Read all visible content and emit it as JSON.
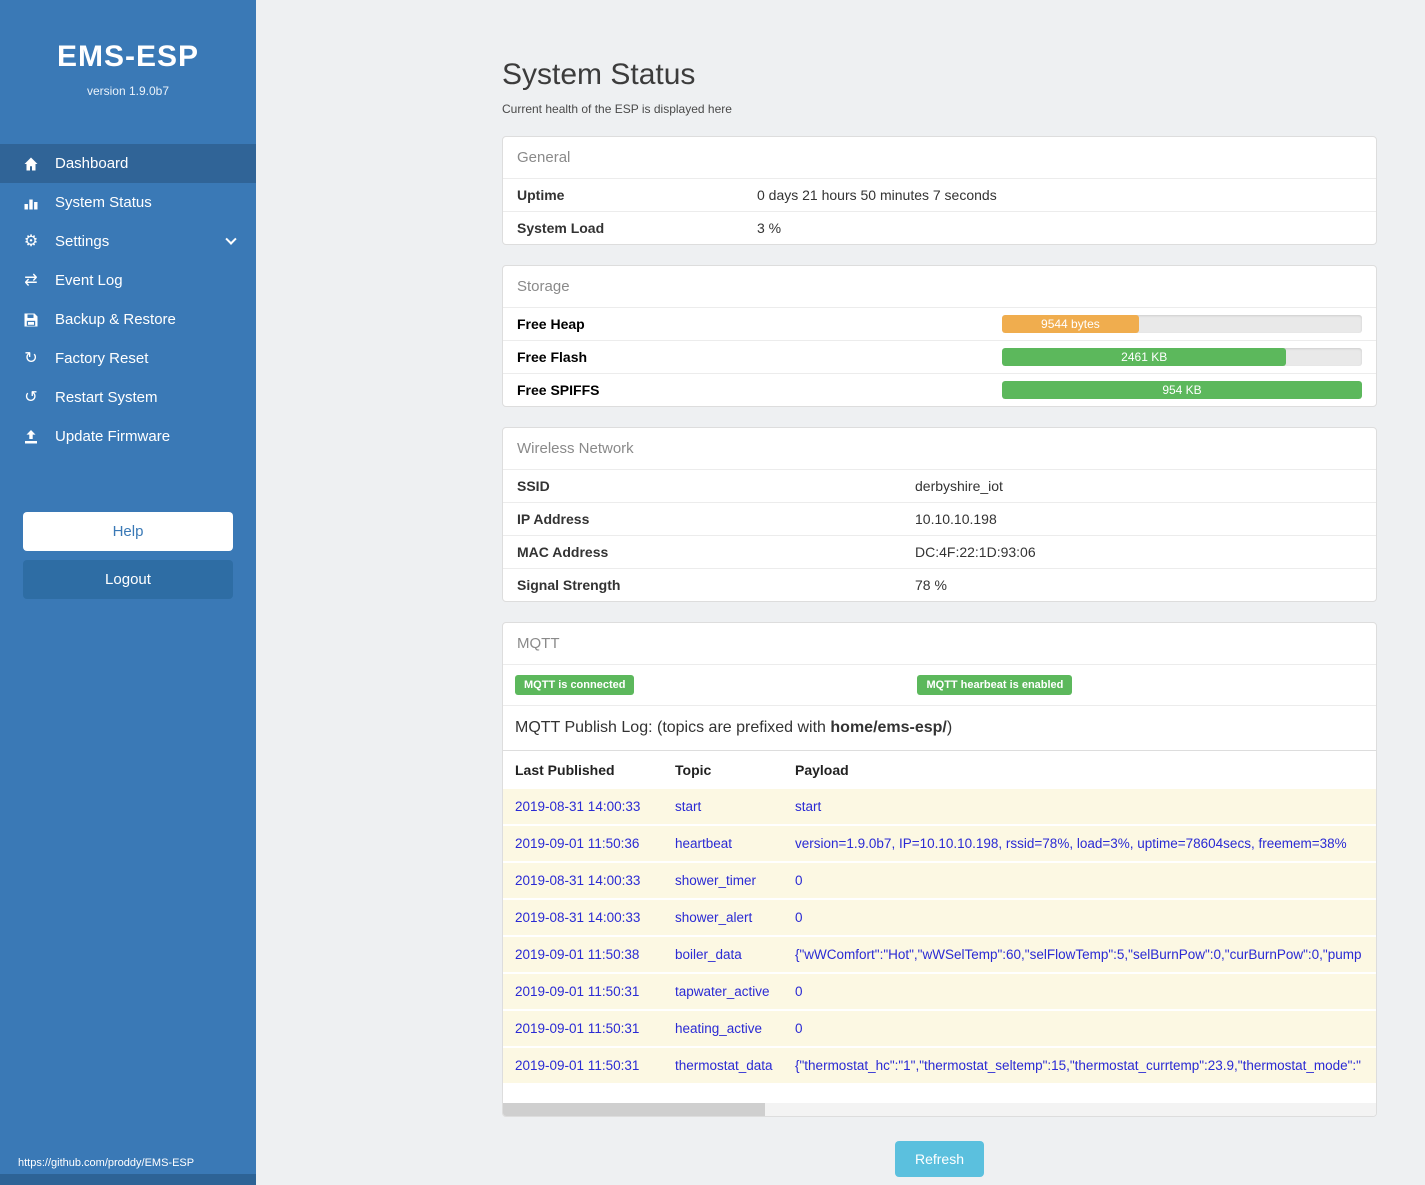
{
  "sidebar": {
    "title": "EMS-ESP",
    "version": "version 1.9.0b7",
    "items": [
      {
        "label": "Dashboard"
      },
      {
        "label": "System Status"
      },
      {
        "label": "Settings"
      },
      {
        "label": "Event Log"
      },
      {
        "label": "Backup & Restore"
      },
      {
        "label": "Factory Reset"
      },
      {
        "label": "Restart System"
      },
      {
        "label": "Update Firmware"
      }
    ],
    "help_label": "Help",
    "logout_label": "Logout",
    "footer_link": "https://github.com/proddy/EMS-ESP"
  },
  "page": {
    "title": "System Status",
    "subtitle": "Current health of the ESP is displayed here"
  },
  "general": {
    "header": "General",
    "rows": [
      {
        "label": "Uptime",
        "value": "0 days 21 hours 50 minutes 7 seconds"
      },
      {
        "label": "System Load",
        "value": "3 %"
      }
    ]
  },
  "storage": {
    "header": "Storage",
    "rows": [
      {
        "label": "Free Heap",
        "bar_label": "9544 bytes",
        "percent": 38,
        "color": "#f0ad4e"
      },
      {
        "label": "Free Flash",
        "bar_label": "2461 KB",
        "percent": 79,
        "color": "#5cb85c"
      },
      {
        "label": "Free SPIFFS",
        "bar_label": "954 KB",
        "percent": 100,
        "color": "#5cb85c"
      }
    ]
  },
  "wireless": {
    "header": "Wireless Network",
    "rows": [
      {
        "label": "SSID",
        "value": "derbyshire_iot"
      },
      {
        "label": "IP Address",
        "value": "10.10.10.198"
      },
      {
        "label": "MAC Address",
        "value": "DC:4F:22:1D:93:06"
      },
      {
        "label": "Signal Strength",
        "value": "78 %"
      }
    ]
  },
  "mqtt": {
    "header": "MQTT",
    "badges": [
      "MQTT is connected",
      "MQTT hearbeat is enabled"
    ],
    "log_title_prefix": "MQTT Publish Log: (topics are prefixed with ",
    "log_title_bold": "home/ems-esp/",
    "log_title_suffix": ")",
    "columns": [
      "Last Published",
      "Topic",
      "Payload"
    ],
    "rows": [
      {
        "published": "2019-08-31 14:00:33",
        "topic": "start",
        "payload": "start"
      },
      {
        "published": "2019-09-01 11:50:36",
        "topic": "heartbeat",
        "payload": "version=1.9.0b7, IP=10.10.10.198, rssid=78%, load=3%, uptime=78604secs, freemem=38%"
      },
      {
        "published": "2019-08-31 14:00:33",
        "topic": "shower_timer",
        "payload": "0"
      },
      {
        "published": "2019-08-31 14:00:33",
        "topic": "shower_alert",
        "payload": "0"
      },
      {
        "published": "2019-09-01 11:50:38",
        "topic": "boiler_data",
        "payload": "{\"wWComfort\":\"Hot\",\"wWSelTemp\":60,\"selFlowTemp\":5,\"selBurnPow\":0,\"curBurnPow\":0,\"pump"
      },
      {
        "published": "2019-09-01 11:50:31",
        "topic": "tapwater_active",
        "payload": "0"
      },
      {
        "published": "2019-09-01 11:50:31",
        "topic": "heating_active",
        "payload": "0"
      },
      {
        "published": "2019-09-01 11:50:31",
        "topic": "thermostat_data",
        "payload": "{\"thermostat_hc\":\"1\",\"thermostat_seltemp\":15,\"thermostat_currtemp\":23.9,\"thermostat_mode\":\""
      }
    ]
  },
  "refresh_label": "Refresh",
  "colors": {
    "sidebar": "#3a79b6",
    "badge_green": "#5cb85c",
    "bar_orange": "#f0ad4e",
    "refresh_blue": "#5bc0de"
  }
}
